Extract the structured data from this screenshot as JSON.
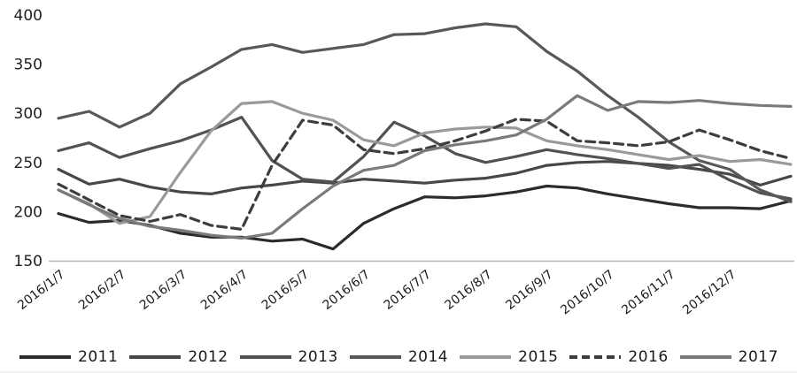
{
  "chart_data": {
    "type": "line",
    "title": "",
    "xlabel": "",
    "ylabel": "",
    "ylim": [
      150,
      400
    ],
    "ytick_step": 50,
    "ytick_labels": [
      "400",
      "350",
      "300",
      "250",
      "200",
      "150"
    ],
    "grid": false,
    "legend_position": "bottom",
    "x_tick_labels": [
      "2016/1/7",
      "2016/2/7",
      "2016/3/7",
      "2016/4/7",
      "2016/5/7",
      "2016/6/7",
      "2016/7/7",
      "2016/8/7",
      "2016/9/7",
      "2016/10/7",
      "2016/11/7",
      "2016/12/7"
    ],
    "x": [
      "2016/1/7",
      "2016/1/21",
      "2016/2/7",
      "2016/2/21",
      "2016/3/7",
      "2016/3/21",
      "2016/4/7",
      "2016/4/21",
      "2016/5/7",
      "2016/5/21",
      "2016/6/7",
      "2016/6/21",
      "2016/7/7",
      "2016/7/21",
      "2016/8/7",
      "2016/8/21",
      "2016/9/7",
      "2016/9/21",
      "2016/10/7",
      "2016/10/21",
      "2016/11/7",
      "2016/11/21",
      "2016/12/7",
      "2016/12/21",
      "2016/12/30"
    ],
    "series": [
      {
        "name": "2011",
        "color": "#2b2b2b",
        "dashed": false,
        "values": [
          198,
          189,
          191,
          186,
          178,
          174,
          174,
          170,
          172,
          162,
          188,
          203,
          215,
          214,
          216,
          220,
          226,
          224,
          218,
          213,
          208,
          204,
          204,
          203,
          211
        ]
      },
      {
        "name": "2012",
        "color": "#474747",
        "dashed": false,
        "values": [
          243,
          228,
          233,
          225,
          220,
          218,
          224,
          227,
          231,
          229,
          233,
          231,
          229,
          232,
          234,
          239,
          247,
          250,
          251,
          249,
          247,
          243,
          238,
          227,
          236
        ]
      },
      {
        "name": "2013",
        "color": "#525252",
        "dashed": false,
        "values": [
          262,
          270,
          255,
          264,
          272,
          283,
          296,
          252,
          233,
          230,
          256,
          291,
          277,
          259,
          250,
          256,
          263,
          258,
          254,
          249,
          244,
          248,
          232,
          219,
          213
        ]
      },
      {
        "name": "2014",
        "color": "#585858",
        "dashed": false,
        "values": [
          295,
          302,
          286,
          300,
          330,
          347,
          365,
          370,
          362,
          366,
          370,
          380,
          381,
          387,
          391,
          388,
          363,
          343,
          318,
          296,
          271,
          252,
          243,
          222,
          210
        ]
      },
      {
        "name": "2015",
        "color": "#9a9a9a",
        "dashed": false,
        "values": [
          222,
          208,
          188,
          195,
          240,
          282,
          310,
          312,
          300,
          293,
          273,
          267,
          280,
          284,
          286,
          285,
          272,
          267,
          263,
          258,
          253,
          257,
          251,
          253,
          248
        ]
      },
      {
        "name": "2016",
        "color": "#3d3d3d",
        "dashed": true,
        "values": [
          228,
          212,
          196,
          190,
          197,
          186,
          182,
          247,
          293,
          288,
          263,
          259,
          264,
          272,
          282,
          294,
          292,
          272,
          270,
          267,
          271,
          283,
          273,
          262,
          254
        ]
      },
      {
        "name": "2017",
        "color": "#7a7a7a",
        "dashed": false,
        "values": [
          222,
          207,
          193,
          185,
          181,
          176,
          173,
          178,
          203,
          226,
          242,
          247,
          262,
          268,
          272,
          278,
          294,
          318,
          303,
          312,
          311,
          313,
          310,
          308,
          307
        ]
      }
    ]
  }
}
